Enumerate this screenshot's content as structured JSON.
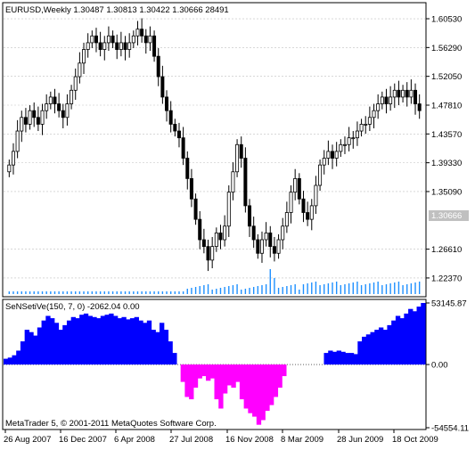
{
  "main": {
    "header": "EURUSD,Weekly  1.30487 1.30813 1.30422 1.30666  28491",
    "price_ticks": [
      "1.60530",
      "1.56290",
      "1.52050",
      "1.47810",
      "1.43570",
      "1.39330",
      "1.35090",
      "1.30666",
      "1.26610",
      "1.22370"
    ],
    "current_price": "1.30666"
  },
  "indicator": {
    "label": "SeNSetiVe(150, 7, 0) -2062.04 0.00",
    "ticks": [
      "53145.87",
      "0.00",
      "-54554.11"
    ],
    "copyright": "MetaTrader 5, © 2001-2011 MetaQuotes Software Corp."
  },
  "time_axis": [
    "26 Aug 2007",
    "16 Dec 2007",
    "6 Apr 2008",
    "27 Jul 2008",
    "16 Nov 2008",
    "8 Mar 2009",
    "28 Jun 2009",
    "18 Oct 2009"
  ],
  "colors": {
    "positive_fill": "#0000ff",
    "negative_fill": "#ff00ff",
    "volume": "#1e90ff",
    "grid": "#c0c0c0",
    "price_tag": "#c0c0c0"
  },
  "chart_data": {
    "type": "candlestick",
    "symbol": "EURUSD",
    "timeframe": "Weekly",
    "ohlc_last": {
      "open": 1.30487,
      "high": 1.30813,
      "low": 1.30422,
      "close": 1.30666
    },
    "volume_last": 28491,
    "close_series": [
      1.39,
      1.41,
      1.44,
      1.46,
      1.45,
      1.47,
      1.46,
      1.45,
      1.47,
      1.48,
      1.49,
      1.48,
      1.47,
      1.46,
      1.48,
      1.5,
      1.52,
      1.54,
      1.56,
      1.57,
      1.58,
      1.57,
      1.56,
      1.57,
      1.58,
      1.57,
      1.56,
      1.57,
      1.56,
      1.57,
      1.58,
      1.59,
      1.58,
      1.57,
      1.58,
      1.55,
      1.52,
      1.49,
      1.47,
      1.45,
      1.44,
      1.43,
      1.4,
      1.37,
      1.34,
      1.31,
      1.28,
      1.27,
      1.25,
      1.27,
      1.29,
      1.28,
      1.3,
      1.35,
      1.38,
      1.42,
      1.4,
      1.33,
      1.3,
      1.28,
      1.26,
      1.28,
      1.29,
      1.27,
      1.26,
      1.28,
      1.3,
      1.32,
      1.35,
      1.37,
      1.34,
      1.32,
      1.31,
      1.33,
      1.36,
      1.39,
      1.4,
      1.41,
      1.4,
      1.41,
      1.42,
      1.42,
      1.43,
      1.43,
      1.44,
      1.45,
      1.45,
      1.46,
      1.47,
      1.48,
      1.49,
      1.48,
      1.49,
      1.5,
      1.49,
      1.5,
      1.49,
      1.5,
      1.48,
      1.47
    ],
    "indicator_series": [
      5000,
      6000,
      8000,
      12000,
      20000,
      30000,
      28000,
      25000,
      32000,
      38000,
      42000,
      40000,
      36000,
      30000,
      34000,
      38000,
      41000,
      40000,
      43000,
      44000,
      42000,
      41000,
      40000,
      42000,
      43000,
      44000,
      42000,
      40000,
      41000,
      39000,
      40000,
      41000,
      38000,
      36000,
      38000,
      30000,
      28000,
      36000,
      30000,
      20000,
      10000,
      0,
      -15000,
      -28000,
      -30000,
      -20000,
      -12000,
      -10000,
      -14000,
      -12000,
      -30000,
      -38000,
      -25000,
      -18000,
      -20000,
      -15000,
      -30000,
      -38000,
      -42000,
      -45000,
      -52000,
      -48000,
      -40000,
      -35000,
      -28000,
      -20000,
      -10000,
      0,
      0,
      0,
      0,
      0,
      0,
      0,
      0,
      0,
      10000,
      12000,
      11000,
      12000,
      11000,
      10000,
      10000,
      9000,
      20000,
      24000,
      26000,
      28000,
      30000,
      32000,
      30000,
      34000,
      38000,
      42000,
      40000,
      44000,
      48000,
      46000,
      50000,
      53145
    ],
    "price_range": [
      1.2,
      1.625
    ],
    "indicator_range": [
      -54554.11,
      53145.87
    ]
  }
}
